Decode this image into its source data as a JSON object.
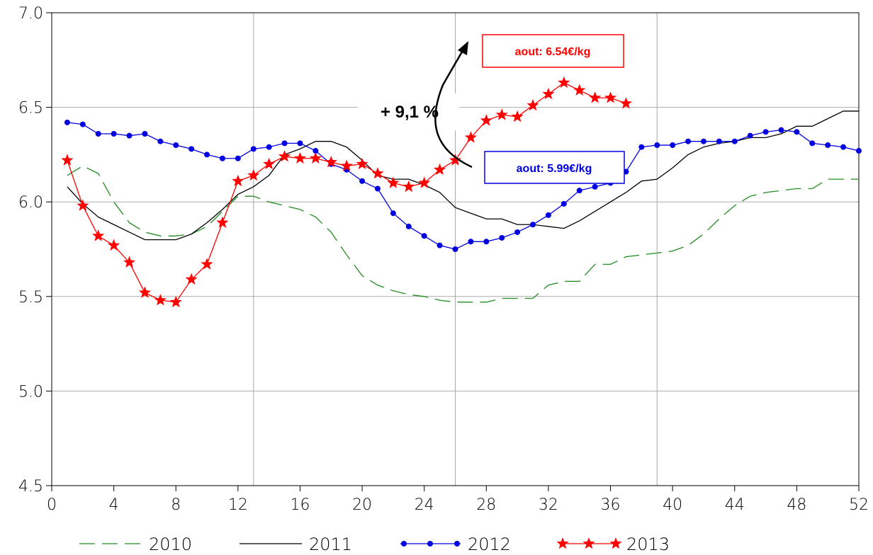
{
  "chart_data": {
    "type": "line",
    "title": "",
    "xlabel": "",
    "ylabel": "",
    "xlim": [
      0,
      52
    ],
    "ylim": [
      4.5,
      7.0
    ],
    "x_ticks": [
      "0",
      "4",
      "8",
      "12",
      "16",
      "20",
      "24",
      "28",
      "32",
      "36",
      "40",
      "44",
      "48",
      "52"
    ],
    "y_ticks": [
      "4.5",
      "5.0",
      "5.5",
      "6.0",
      "6.5",
      "7.0"
    ],
    "x_tick_values": [
      0,
      4,
      8,
      12,
      16,
      20,
      24,
      28,
      32,
      36,
      40,
      44,
      48,
      52
    ],
    "y_tick_values": [
      4.5,
      5.0,
      5.5,
      6.0,
      6.5,
      7.0
    ],
    "vgrid": [
      13,
      26,
      39
    ],
    "hgrid": [
      5.0,
      5.5,
      6.0,
      6.5
    ],
    "grid": true,
    "legend_position": "bottom",
    "series": [
      {
        "name": "2010",
        "color": "#228B22",
        "style": "dashed",
        "marker": "none",
        "x": [
          1,
          2,
          3,
          4,
          5,
          6,
          7,
          8,
          9,
          10,
          11,
          12,
          13,
          14,
          15,
          16,
          17,
          18,
          19,
          20,
          21,
          22,
          23,
          24,
          25,
          26,
          27,
          28,
          29,
          30,
          31,
          32,
          33,
          34,
          35,
          36,
          37,
          38,
          39,
          40,
          41,
          42,
          43,
          44,
          45,
          46,
          47,
          48,
          49,
          50,
          51,
          52
        ],
        "values": [
          6.14,
          6.19,
          6.15,
          6.0,
          5.89,
          5.84,
          5.82,
          5.82,
          5.83,
          5.87,
          5.95,
          6.03,
          6.03,
          6.0,
          5.98,
          5.96,
          5.92,
          5.84,
          5.72,
          5.61,
          5.56,
          5.53,
          5.51,
          5.5,
          5.48,
          5.47,
          5.47,
          5.47,
          5.49,
          5.49,
          5.49,
          5.56,
          5.58,
          5.58,
          5.67,
          5.67,
          5.71,
          5.72,
          5.73,
          5.74,
          5.77,
          5.83,
          5.91,
          5.98,
          6.03,
          6.05,
          6.06,
          6.07,
          6.07,
          6.12,
          6.12,
          6.12
        ]
      },
      {
        "name": "2011",
        "color": "#000000",
        "style": "solid",
        "marker": "none",
        "x": [
          1,
          2,
          3,
          4,
          5,
          6,
          7,
          8,
          9,
          10,
          11,
          12,
          13,
          14,
          15,
          16,
          17,
          18,
          19,
          20,
          21,
          22,
          23,
          24,
          25,
          26,
          27,
          28,
          29,
          30,
          31,
          32,
          33,
          34,
          35,
          36,
          37,
          38,
          39,
          40,
          41,
          42,
          43,
          44,
          45,
          46,
          47,
          48,
          49,
          50,
          51,
          52
        ],
        "values": [
          6.08,
          5.99,
          5.92,
          5.88,
          5.84,
          5.8,
          5.8,
          5.8,
          5.83,
          5.89,
          5.96,
          6.04,
          6.08,
          6.14,
          6.25,
          6.28,
          6.32,
          6.32,
          6.29,
          6.22,
          6.14,
          6.12,
          6.12,
          6.09,
          6.05,
          5.97,
          5.94,
          5.91,
          5.91,
          5.88,
          5.88,
          5.87,
          5.86,
          5.9,
          5.95,
          6.0,
          6.05,
          6.11,
          6.12,
          6.18,
          6.25,
          6.29,
          6.31,
          6.32,
          6.34,
          6.34,
          6.36,
          6.4,
          6.4,
          6.44,
          6.48,
          6.48
        ]
      },
      {
        "name": "2012",
        "color": "#0000E0",
        "style": "solid",
        "marker": "circle",
        "x": [
          1,
          2,
          3,
          4,
          5,
          6,
          7,
          8,
          9,
          10,
          11,
          12,
          13,
          14,
          15,
          16,
          17,
          18,
          19,
          20,
          21,
          22,
          23,
          24,
          25,
          26,
          27,
          28,
          29,
          30,
          31,
          32,
          33,
          34,
          35,
          36,
          37,
          38,
          39,
          40,
          41,
          42,
          43,
          44,
          45,
          46,
          47,
          48,
          49,
          50,
          51,
          52
        ],
        "values": [
          6.42,
          6.41,
          6.36,
          6.36,
          6.35,
          6.36,
          6.32,
          6.3,
          6.28,
          6.25,
          6.23,
          6.23,
          6.28,
          6.29,
          6.31,
          6.31,
          6.27,
          6.2,
          6.17,
          6.11,
          6.07,
          5.94,
          5.87,
          5.82,
          5.77,
          5.75,
          5.79,
          5.79,
          5.81,
          5.84,
          5.88,
          5.93,
          5.99,
          6.06,
          6.08,
          6.1,
          6.16,
          6.29,
          6.3,
          6.3,
          6.32,
          6.32,
          6.32,
          6.32,
          6.35,
          6.37,
          6.38,
          6.37,
          6.31,
          6.3,
          6.29,
          6.27
        ]
      },
      {
        "name": "2013",
        "color": "#FF0000",
        "style": "solid",
        "marker": "star",
        "x": [
          1,
          2,
          3,
          4,
          5,
          6,
          7,
          8,
          9,
          10,
          11,
          12,
          13,
          14,
          15,
          16,
          17,
          18,
          19,
          20,
          21,
          22,
          23,
          24,
          25,
          26,
          27,
          28,
          29,
          30,
          31,
          32,
          33,
          34,
          35,
          36,
          37
        ],
        "values": [
          6.22,
          5.98,
          5.82,
          5.77,
          5.68,
          5.52,
          5.48,
          5.47,
          5.59,
          5.67,
          5.89,
          6.11,
          6.14,
          6.2,
          6.24,
          6.23,
          6.23,
          6.21,
          6.19,
          6.2,
          6.15,
          6.1,
          6.08,
          6.1,
          6.17,
          6.22,
          6.34,
          6.43,
          6.46,
          6.45,
          6.51,
          6.57,
          6.63,
          6.59,
          6.55,
          6.55,
          6.52
        ]
      }
    ],
    "annotations": {
      "red_box": "aout: 6.54€/kg",
      "blue_box": "aout: 5.99€/kg",
      "change": "+ 9,1 %"
    }
  }
}
